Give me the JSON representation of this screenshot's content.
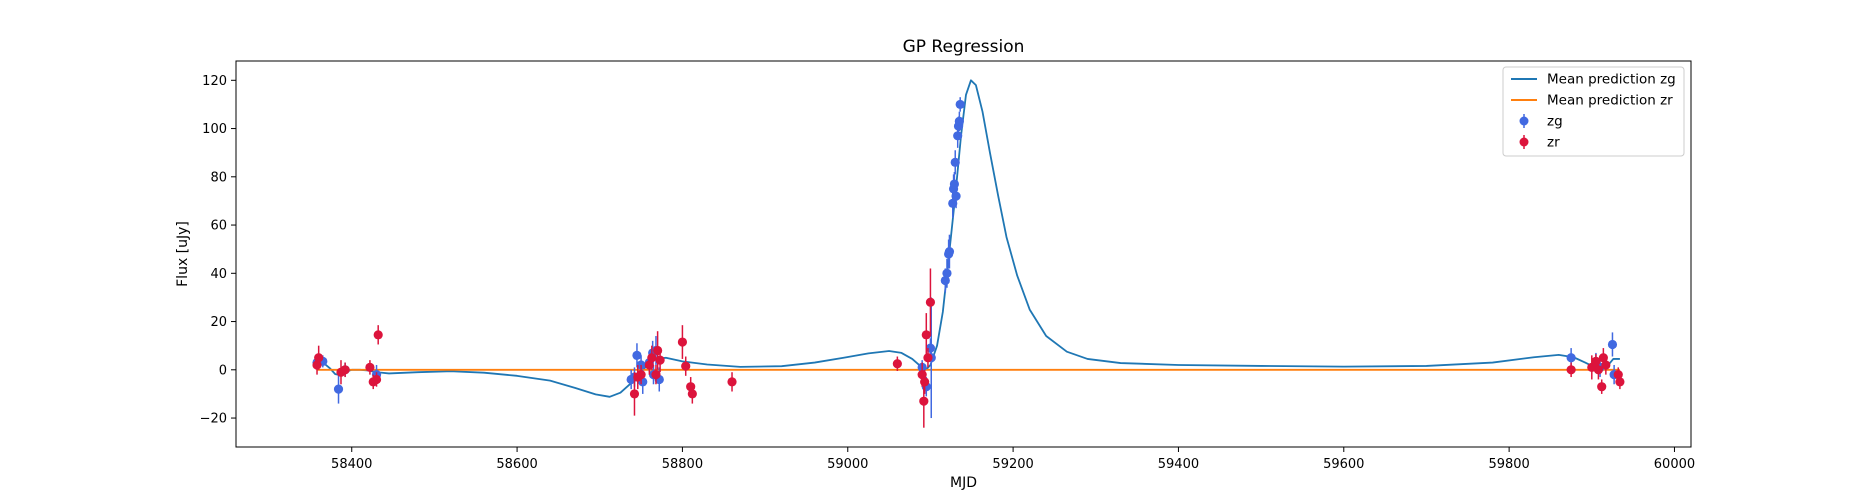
{
  "chart_data": {
    "type": "scatter",
    "title": "GP Regression",
    "xlabel": "MJD",
    "ylabel": "Flux [uJy]",
    "xlim": [
      58260,
      60020
    ],
    "ylim": [
      -32,
      128
    ],
    "xticks": [
      58400,
      58600,
      58800,
      59000,
      59200,
      59400,
      59600,
      59800,
      60000
    ],
    "yticks": [
      -20,
      0,
      20,
      40,
      60,
      80,
      100,
      120
    ],
    "grid": false,
    "legend_position": "top-right",
    "legend": [
      "Mean prediction zg",
      "Mean prediction zr",
      "zg",
      "zr"
    ],
    "colors": {
      "mean_zg": "#1f77b4",
      "mean_zr": "#ff7f0e",
      "zg": "#4169e1",
      "zr": "#dc143c"
    },
    "series": [
      {
        "name": "Mean prediction zg",
        "kind": "line",
        "color": "#1f77b4",
        "points": [
          [
            58358,
            2.5
          ],
          [
            58366,
            2.8
          ],
          [
            58374,
            0.5
          ],
          [
            58380,
            -1.8
          ],
          [
            58386,
            -2.2
          ],
          [
            58393,
            -0.8
          ],
          [
            58400,
            0.0
          ],
          [
            58410,
            0.0
          ],
          [
            58420,
            -0.3
          ],
          [
            58430,
            -1.0
          ],
          [
            58445,
            -1.5
          ],
          [
            58480,
            -1.0
          ],
          [
            58520,
            -0.6
          ],
          [
            58560,
            -1.2
          ],
          [
            58600,
            -2.5
          ],
          [
            58640,
            -4.5
          ],
          [
            58670,
            -7.5
          ],
          [
            58695,
            -10.2
          ],
          [
            58712,
            -11.2
          ],
          [
            58725,
            -9.5
          ],
          [
            58738,
            -5.5
          ],
          [
            58748,
            -1.5
          ],
          [
            58758,
            2.0
          ],
          [
            58768,
            4.5
          ],
          [
            58780,
            5.0
          ],
          [
            58800,
            3.5
          ],
          [
            58830,
            2.2
          ],
          [
            58870,
            1.2
          ],
          [
            58920,
            1.5
          ],
          [
            58960,
            3.0
          ],
          [
            58995,
            5.0
          ],
          [
            59025,
            6.8
          ],
          [
            59050,
            7.8
          ],
          [
            59065,
            7.0
          ],
          [
            59078,
            4.5
          ],
          [
            59087,
            1.8
          ],
          [
            59095,
            0.2
          ],
          [
            59100,
            2.0
          ],
          [
            59108,
            10.0
          ],
          [
            59115,
            24.0
          ],
          [
            59122,
            46.0
          ],
          [
            59130,
            72.0
          ],
          [
            59137,
            97.0
          ],
          [
            59143,
            114.0
          ],
          [
            59149,
            120.0
          ],
          [
            59155,
            118.0
          ],
          [
            59163,
            107.0
          ],
          [
            59172,
            90.0
          ],
          [
            59182,
            72.0
          ],
          [
            59192,
            55.0
          ],
          [
            59205,
            39.0
          ],
          [
            59220,
            25.0
          ],
          [
            59240,
            14.0
          ],
          [
            59265,
            7.5
          ],
          [
            59290,
            4.5
          ],
          [
            59330,
            2.8
          ],
          [
            59400,
            2.0
          ],
          [
            59500,
            1.6
          ],
          [
            59600,
            1.3
          ],
          [
            59700,
            1.6
          ],
          [
            59780,
            3.0
          ],
          [
            59830,
            5.2
          ],
          [
            59860,
            6.2
          ],
          [
            59878,
            5.2
          ],
          [
            59892,
            3.0
          ],
          [
            59904,
            1.0
          ],
          [
            59912,
            0.5
          ],
          [
            59920,
            2.0
          ],
          [
            59926,
            4.5
          ],
          [
            59934,
            4.5
          ]
        ]
      },
      {
        "name": "Mean prediction zr",
        "kind": "line",
        "color": "#ff7f0e",
        "points": [
          [
            58358,
            0.0
          ],
          [
            59934,
            0.0
          ]
        ]
      },
      {
        "name": "zg",
        "kind": "errorbar",
        "color": "#4169e1",
        "points": [
          [
            58358,
            3,
            3
          ],
          [
            58365,
            3.5,
            2.5
          ],
          [
            58384,
            -8,
            6
          ],
          [
            58392,
            0,
            3
          ],
          [
            58430,
            -2,
            4
          ],
          [
            58738,
            -4,
            4
          ],
          [
            58742,
            -3,
            4
          ],
          [
            58745,
            6,
            5
          ],
          [
            58750,
            2,
            4
          ],
          [
            58752,
            -5,
            5
          ],
          [
            58760,
            3,
            4
          ],
          [
            58764,
            7,
            5
          ],
          [
            58765,
            -2,
            4
          ],
          [
            58768,
            8,
            6
          ],
          [
            58772,
            -4,
            5
          ],
          [
            59090,
            1,
            3
          ],
          [
            59095,
            -7,
            4
          ],
          [
            59100,
            9,
            4
          ],
          [
            59101,
            5,
            25
          ],
          [
            59118,
            37,
            5
          ],
          [
            59120,
            40,
            6
          ],
          [
            59122,
            48,
            6
          ],
          [
            59123,
            49,
            7
          ],
          [
            59127,
            69,
            6
          ],
          [
            59128,
            75,
            6
          ],
          [
            59129,
            77,
            5
          ],
          [
            59130,
            86,
            5
          ],
          [
            59131,
            72,
            5
          ],
          [
            59133,
            97,
            5
          ],
          [
            59134,
            101,
            4
          ],
          [
            59135,
            103,
            4
          ],
          [
            59136,
            110,
            3
          ],
          [
            59875,
            5,
            4
          ],
          [
            59905,
            3,
            4
          ],
          [
            59910,
            1,
            4
          ],
          [
            59925,
            10.5,
            5
          ],
          [
            59927,
            -2,
            4
          ]
        ]
      },
      {
        "name": "zr",
        "kind": "errorbar",
        "color": "#dc143c",
        "points": [
          [
            58358,
            2,
            4
          ],
          [
            58360,
            5,
            5
          ],
          [
            58387,
            -1,
            5
          ],
          [
            58392,
            0,
            3
          ],
          [
            58422,
            1,
            3
          ],
          [
            58426,
            -5,
            3
          ],
          [
            58430,
            -4,
            3
          ],
          [
            58432,
            14.5,
            4
          ],
          [
            58742,
            -10,
            9
          ],
          [
            58746,
            -3,
            5
          ],
          [
            58750,
            -2,
            4
          ],
          [
            58760,
            2,
            4
          ],
          [
            58763,
            5,
            5
          ],
          [
            58768,
            -2,
            4
          ],
          [
            58770,
            8,
            8
          ],
          [
            58773,
            4,
            5
          ],
          [
            58800,
            11.5,
            7
          ],
          [
            58804,
            1.5,
            4
          ],
          [
            58810,
            -7,
            4
          ],
          [
            58812,
            -10,
            4
          ],
          [
            58860,
            -5,
            4
          ],
          [
            59060,
            2.5,
            3
          ],
          [
            59090,
            -2,
            5
          ],
          [
            59092,
            -13,
            11
          ],
          [
            59093,
            -5,
            5
          ],
          [
            59095,
            14.5,
            9
          ],
          [
            59097,
            5,
            4
          ],
          [
            59100,
            28,
            14
          ],
          [
            59875,
            0,
            3
          ],
          [
            59900,
            1,
            5
          ],
          [
            59905,
            3.5,
            3
          ],
          [
            59908,
            0,
            4
          ],
          [
            59912,
            -7,
            3
          ],
          [
            59914,
            5,
            4
          ],
          [
            59917,
            2,
            4
          ],
          [
            59932,
            -2,
            3
          ],
          [
            59934,
            -5,
            3
          ]
        ]
      }
    ]
  }
}
